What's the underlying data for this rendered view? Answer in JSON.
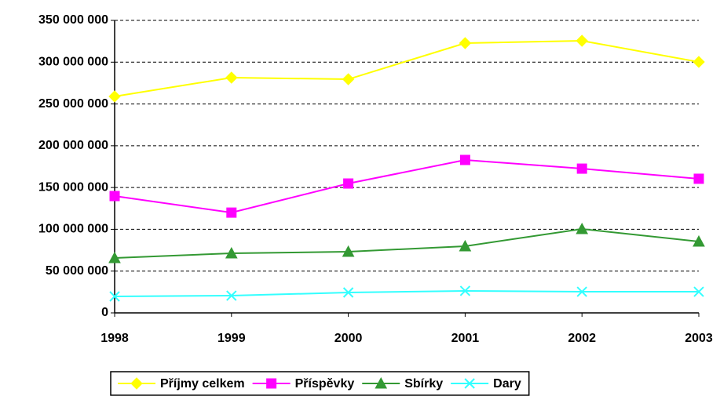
{
  "chart_data": {
    "type": "line",
    "categories": [
      "1998",
      "1999",
      "2000",
      "2001",
      "2002",
      "2003"
    ],
    "series": [
      {
        "name": "Příjmy celkem",
        "color": "#ffff00",
        "marker": "diamond",
        "values": [
          259000000,
          281500000,
          279600000,
          322800000,
          325600000,
          300300000
        ]
      },
      {
        "name": "Příspěvky",
        "color": "#ff00ff",
        "marker": "square",
        "values": [
          139800000,
          120000000,
          154800000,
          183000000,
          172600000,
          160500000
        ]
      },
      {
        "name": "Sbírky",
        "color": "#339933",
        "marker": "triangle",
        "values": [
          65700000,
          71300000,
          73200000,
          79800000,
          100400000,
          85400000
        ]
      },
      {
        "name": "Dary",
        "color": "#33ffff",
        "marker": "x",
        "values": [
          19700000,
          20600000,
          24400000,
          26300000,
          25300000,
          25300000
        ]
      }
    ],
    "ylim": [
      0,
      350000000
    ],
    "yticks": [
      0,
      {
        "value": 50000000,
        "label": "50 000 000"
      },
      {
        "value": 100000000,
        "label": "100 000 000"
      },
      {
        "value": 150000000,
        "label": "150 000 000"
      },
      {
        "value": 200000000,
        "label": "200 000 000"
      },
      {
        "value": 250000000,
        "label": "250 000 000"
      },
      {
        "value": 300000000,
        "label": "300 000 000"
      },
      {
        "value": 350000000,
        "label": "350 000 000"
      }
    ],
    "grid": true,
    "legend": "bottom"
  }
}
